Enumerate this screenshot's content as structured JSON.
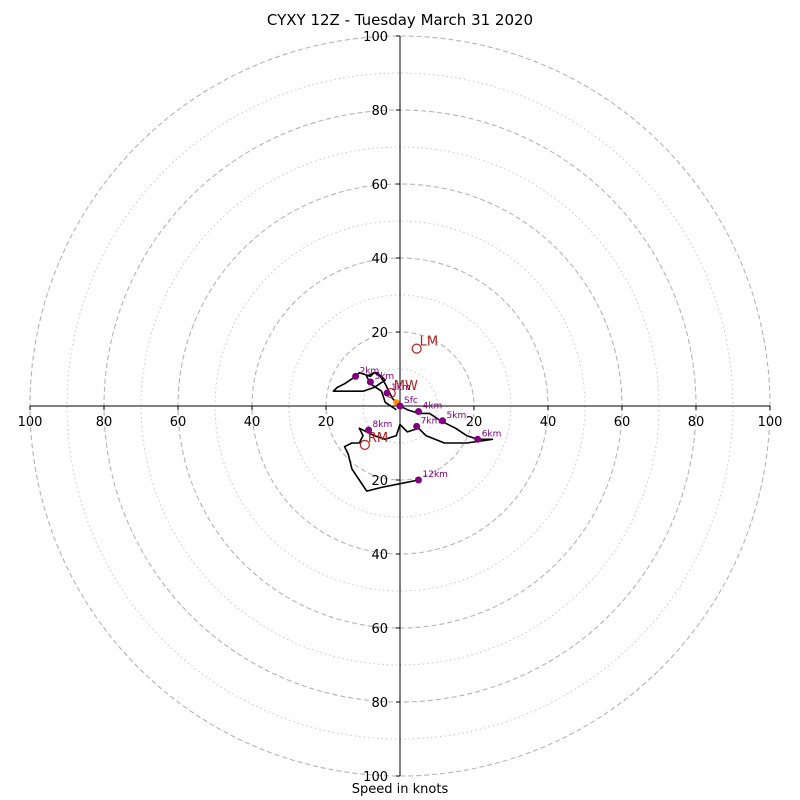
{
  "chart_data": {
    "type": "scatter",
    "title": "CYXY 12Z - Tuesday March 31 2020",
    "xlabel": "Speed in knots",
    "ylabel": "",
    "xlim": [
      -100,
      100
    ],
    "ylim": [
      -100,
      100
    ],
    "rings_dashed": [
      20,
      40,
      60,
      80,
      100
    ],
    "rings_dotted": [
      10,
      30,
      50,
      70,
      90
    ],
    "ticks": [
      {
        "value": -100,
        "label": "100"
      },
      {
        "value": -80,
        "label": "80"
      },
      {
        "value": -60,
        "label": "60"
      },
      {
        "value": -40,
        "label": "40"
      },
      {
        "value": -20,
        "label": "20"
      },
      {
        "value": 20,
        "label": "20"
      },
      {
        "value": 40,
        "label": "40"
      },
      {
        "value": 60,
        "label": "60"
      },
      {
        "value": 80,
        "label": "80"
      },
      {
        "value": 100,
        "label": "100"
      }
    ],
    "hodograph_line": {
      "color": "#000000",
      "points": [
        [
          -1,
          -1
        ],
        [
          -4,
          1
        ],
        [
          -5,
          4
        ],
        [
          -8,
          6
        ],
        [
          -9,
          8
        ],
        [
          -7,
          9
        ],
        [
          -5,
          8
        ],
        [
          -4,
          7
        ],
        [
          -7,
          5
        ],
        [
          -10,
          4
        ],
        [
          -18,
          4
        ],
        [
          -17,
          5
        ],
        [
          -15,
          6
        ],
        [
          -12,
          8
        ],
        [
          -11,
          9
        ],
        [
          -8,
          8
        ],
        [
          -7,
          9
        ],
        [
          -6,
          9
        ],
        [
          -4,
          6
        ],
        [
          -2,
          2
        ],
        [
          0,
          0
        ],
        [
          2,
          -1
        ],
        [
          5,
          -2
        ],
        [
          8,
          -2
        ],
        [
          11,
          -4
        ],
        [
          15,
          -6
        ],
        [
          18,
          -8
        ],
        [
          21,
          -9
        ],
        [
          25,
          -9
        ],
        [
          18,
          -10
        ],
        [
          12,
          -10
        ],
        [
          7,
          -8
        ],
        [
          5,
          -6
        ],
        [
          2,
          -7
        ],
        [
          0,
          -5
        ],
        [
          -1,
          -8
        ],
        [
          -4,
          -9
        ],
        [
          -7,
          -8
        ],
        [
          -9,
          -7
        ],
        [
          -11,
          -6
        ],
        [
          -10,
          -8
        ],
        [
          -11,
          -10
        ],
        [
          -13,
          -10
        ],
        [
          -15,
          -11
        ],
        [
          -14,
          -13
        ],
        [
          -13,
          -17
        ],
        [
          -11,
          -20
        ],
        [
          -9,
          -23
        ],
        [
          -5,
          -22
        ],
        [
          0,
          -21
        ],
        [
          5,
          -20
        ]
      ]
    },
    "height_markers": {
      "color": "#800080",
      "points": [
        {
          "x": 0,
          "y": 0,
          "label": "Sfc"
        },
        {
          "x": -3.5,
          "y": 3.5,
          "label": "1km"
        },
        {
          "x": -12,
          "y": 8,
          "label": "2km"
        },
        {
          "x": -8,
          "y": 6.5,
          "label": "3km"
        },
        {
          "x": 5,
          "y": -1.5,
          "label": "4km"
        },
        {
          "x": 11.5,
          "y": -4,
          "label": "5km"
        },
        {
          "x": 21,
          "y": -9,
          "label": "6km"
        },
        {
          "x": 4.5,
          "y": -5.5,
          "label": "7km"
        },
        {
          "x": -8.5,
          "y": -6.5,
          "label": "8km"
        },
        {
          "x": 5,
          "y": -20,
          "label": "12km"
        }
      ]
    },
    "storm_motion": {
      "color": "#b22222",
      "points": [
        {
          "x": 4.5,
          "y": 15.5,
          "label": "LM"
        },
        {
          "x": -2.5,
          "y": 3.5,
          "label": "MW"
        },
        {
          "x": -9.5,
          "y": -10.5,
          "label": "RM"
        }
      ]
    },
    "critical_angle_marker": {
      "color": "#ff8c00",
      "x": -1,
      "y": 1
    }
  }
}
